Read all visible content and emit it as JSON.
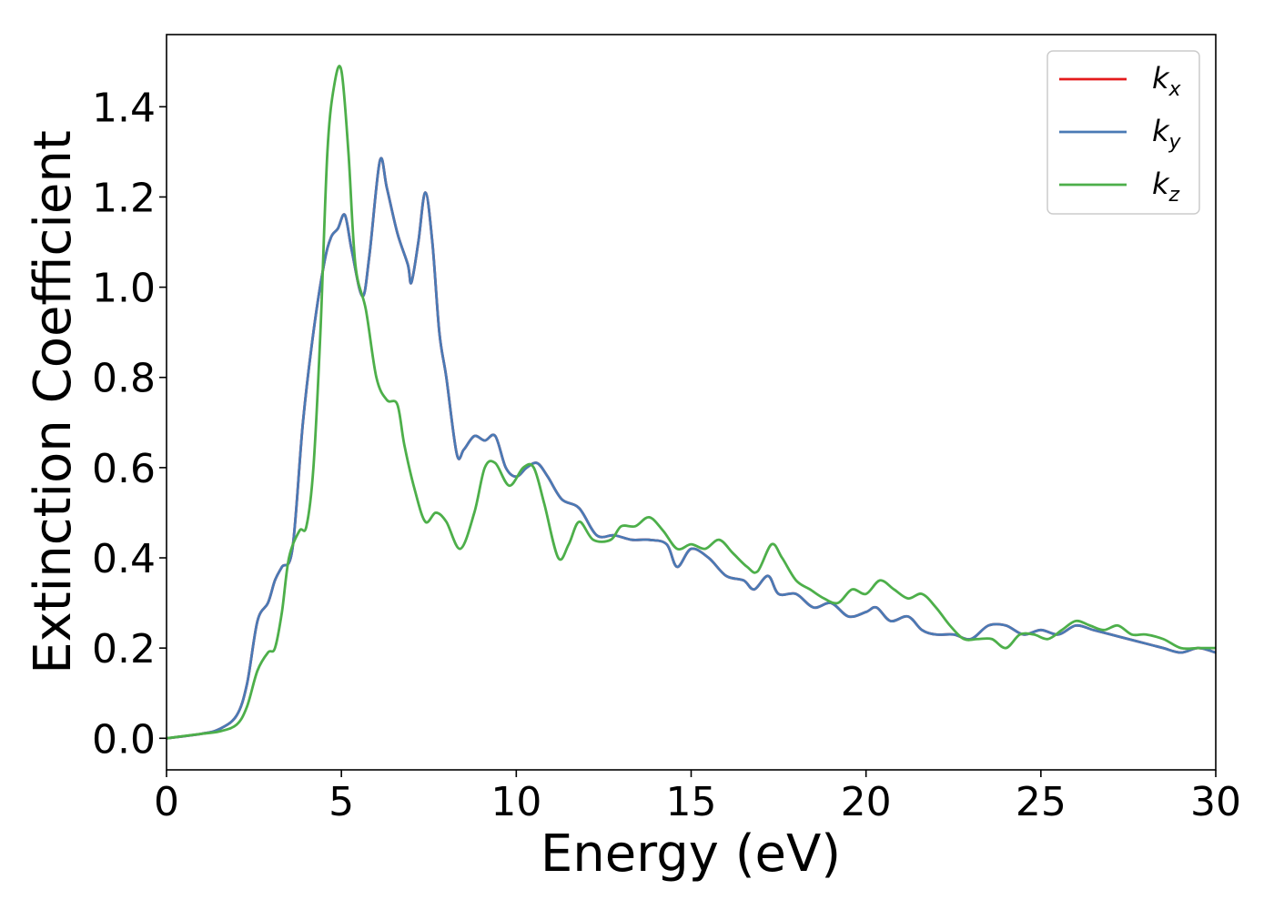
{
  "chart_data": {
    "type": "line",
    "title": "",
    "xlabel": "Energy (eV)",
    "ylabel": "Extinction Coefficient",
    "xlim": [
      0,
      30
    ],
    "ylim": [
      -0.07,
      1.56
    ],
    "xticks": [
      "0",
      "5",
      "10",
      "15",
      "20",
      "25",
      "30"
    ],
    "yticks": [
      "0.0",
      "0.2",
      "0.4",
      "0.6",
      "0.8",
      "1.0",
      "1.2",
      "1.4"
    ],
    "grid": false,
    "legend_position": "top-right",
    "series": [
      {
        "name": "k_x",
        "label_base": "k",
        "label_sub": "x",
        "color": "#e41a1c",
        "x": [
          0,
          1,
          1.5,
          2,
          2.3,
          2.6,
          2.9,
          3.1,
          3.3,
          3.6,
          3.9,
          4.2,
          4.5,
          4.7,
          4.9,
          5.1,
          5.3,
          5.6,
          5.8,
          6.1,
          6.3,
          6.6,
          6.9,
          7.0,
          7.2,
          7.4,
          7.6,
          7.8,
          8.0,
          8.3,
          8.5,
          8.8,
          9.1,
          9.4,
          9.7,
          10.0,
          10.3,
          10.6,
          10.9,
          11.3,
          11.8,
          12.3,
          12.8,
          13.3,
          13.8,
          14.3,
          14.6,
          15.0,
          15.5,
          16.0,
          16.5,
          16.8,
          17.2,
          17.5,
          18.0,
          18.5,
          19.0,
          19.5,
          20.0,
          20.3,
          20.7,
          21.2,
          21.6,
          22.0,
          22.5,
          23.0,
          23.5,
          24.0,
          24.5,
          25.0,
          25.5,
          26.0,
          26.5,
          27.0,
          27.5,
          28.0,
          28.5,
          29.0,
          29.5,
          30.0
        ],
        "y": [
          0.0,
          0.01,
          0.02,
          0.05,
          0.12,
          0.26,
          0.3,
          0.35,
          0.38,
          0.42,
          0.7,
          0.9,
          1.05,
          1.11,
          1.13,
          1.16,
          1.08,
          0.98,
          1.07,
          1.28,
          1.22,
          1.12,
          1.05,
          1.01,
          1.1,
          1.21,
          1.1,
          0.9,
          0.8,
          0.63,
          0.64,
          0.67,
          0.66,
          0.67,
          0.6,
          0.58,
          0.6,
          0.61,
          0.58,
          0.53,
          0.51,
          0.45,
          0.45,
          0.44,
          0.44,
          0.43,
          0.38,
          0.42,
          0.4,
          0.36,
          0.35,
          0.33,
          0.36,
          0.32,
          0.32,
          0.29,
          0.3,
          0.27,
          0.28,
          0.29,
          0.26,
          0.27,
          0.24,
          0.23,
          0.23,
          0.22,
          0.25,
          0.25,
          0.23,
          0.24,
          0.23,
          0.25,
          0.24,
          0.23,
          0.22,
          0.21,
          0.2,
          0.19,
          0.2,
          0.19
        ]
      },
      {
        "name": "k_y",
        "label_base": "k",
        "label_sub": "y",
        "color": "#4a7ab5",
        "x": [
          0,
          1,
          1.5,
          2,
          2.3,
          2.6,
          2.9,
          3.1,
          3.3,
          3.6,
          3.9,
          4.2,
          4.5,
          4.7,
          4.9,
          5.1,
          5.3,
          5.6,
          5.8,
          6.1,
          6.3,
          6.6,
          6.9,
          7.0,
          7.2,
          7.4,
          7.6,
          7.8,
          8.0,
          8.3,
          8.5,
          8.8,
          9.1,
          9.4,
          9.7,
          10.0,
          10.3,
          10.6,
          10.9,
          11.3,
          11.8,
          12.3,
          12.8,
          13.3,
          13.8,
          14.3,
          14.6,
          15.0,
          15.5,
          16.0,
          16.5,
          16.8,
          17.2,
          17.5,
          18.0,
          18.5,
          19.0,
          19.5,
          20.0,
          20.3,
          20.7,
          21.2,
          21.6,
          22.0,
          22.5,
          23.0,
          23.5,
          24.0,
          24.5,
          25.0,
          25.5,
          26.0,
          26.5,
          27.0,
          27.5,
          28.0,
          28.5,
          29.0,
          29.5,
          30.0
        ],
        "y": [
          0.0,
          0.01,
          0.02,
          0.05,
          0.12,
          0.26,
          0.3,
          0.35,
          0.38,
          0.42,
          0.7,
          0.9,
          1.05,
          1.11,
          1.13,
          1.16,
          1.08,
          0.98,
          1.07,
          1.28,
          1.22,
          1.12,
          1.05,
          1.01,
          1.1,
          1.21,
          1.1,
          0.9,
          0.8,
          0.63,
          0.64,
          0.67,
          0.66,
          0.67,
          0.6,
          0.58,
          0.6,
          0.61,
          0.58,
          0.53,
          0.51,
          0.45,
          0.45,
          0.44,
          0.44,
          0.43,
          0.38,
          0.42,
          0.4,
          0.36,
          0.35,
          0.33,
          0.36,
          0.32,
          0.32,
          0.29,
          0.3,
          0.27,
          0.28,
          0.29,
          0.26,
          0.27,
          0.24,
          0.23,
          0.23,
          0.22,
          0.25,
          0.25,
          0.23,
          0.24,
          0.23,
          0.25,
          0.24,
          0.23,
          0.22,
          0.21,
          0.2,
          0.19,
          0.2,
          0.19
        ]
      },
      {
        "name": "k_z",
        "label_base": "k",
        "label_sub": "z",
        "color": "#4daf4a",
        "x": [
          0,
          1,
          1.5,
          2,
          2.3,
          2.6,
          2.9,
          3.1,
          3.3,
          3.5,
          3.8,
          4.0,
          4.2,
          4.4,
          4.6,
          4.8,
          5.0,
          5.2,
          5.4,
          5.7,
          6.0,
          6.3,
          6.6,
          6.8,
          7.1,
          7.4,
          7.7,
          8.0,
          8.4,
          8.8,
          9.1,
          9.4,
          9.8,
          10.2,
          10.5,
          10.8,
          11.2,
          11.5,
          11.8,
          12.2,
          12.7,
          13.0,
          13.4,
          13.8,
          14.2,
          14.6,
          15.0,
          15.4,
          15.8,
          16.2,
          16.6,
          16.9,
          17.3,
          17.6,
          18.0,
          18.4,
          18.8,
          19.2,
          19.6,
          20.0,
          20.4,
          20.8,
          21.2,
          21.6,
          22.0,
          22.4,
          22.8,
          23.2,
          23.6,
          24.0,
          24.4,
          24.8,
          25.2,
          25.6,
          26.0,
          26.4,
          26.8,
          27.2,
          27.6,
          28.0,
          28.5,
          29.0,
          29.5,
          30.0
        ],
        "y": [
          0.0,
          0.01,
          0.015,
          0.03,
          0.07,
          0.15,
          0.19,
          0.2,
          0.28,
          0.4,
          0.46,
          0.47,
          0.6,
          0.9,
          1.3,
          1.45,
          1.48,
          1.3,
          1.05,
          0.95,
          0.8,
          0.75,
          0.74,
          0.65,
          0.55,
          0.48,
          0.5,
          0.48,
          0.42,
          0.5,
          0.6,
          0.61,
          0.56,
          0.6,
          0.6,
          0.52,
          0.4,
          0.43,
          0.48,
          0.44,
          0.44,
          0.47,
          0.47,
          0.49,
          0.46,
          0.42,
          0.43,
          0.42,
          0.44,
          0.41,
          0.38,
          0.37,
          0.43,
          0.4,
          0.35,
          0.33,
          0.31,
          0.3,
          0.33,
          0.32,
          0.35,
          0.33,
          0.31,
          0.32,
          0.29,
          0.25,
          0.22,
          0.22,
          0.22,
          0.2,
          0.23,
          0.23,
          0.22,
          0.24,
          0.26,
          0.25,
          0.24,
          0.25,
          0.23,
          0.23,
          0.22,
          0.2,
          0.2,
          0.2
        ]
      }
    ]
  }
}
